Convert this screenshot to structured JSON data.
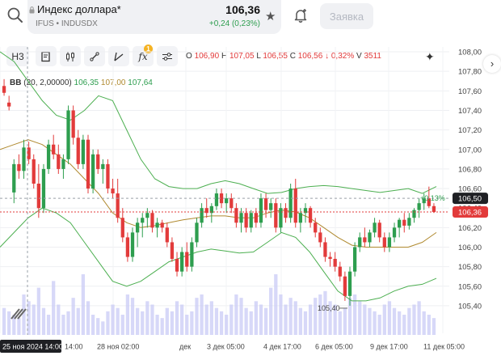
{
  "header": {
    "title": "Индекс доллара*",
    "subtitle": "IFUS • INDUSDX",
    "price": "106,36",
    "change": "+0,24 (0,23%)",
    "order_label": "Заявка"
  },
  "toolbar": {
    "interval_label": "H3",
    "badge": "1",
    "items": [
      "notes-icon",
      "candles-icon",
      "draw-icon",
      "lines-icon",
      "indicators-icon",
      "settings-icon"
    ]
  },
  "ohlc": {
    "o_label": "O",
    "o": "106,90",
    "h_label": "H",
    "h": "107,05",
    "l_label": "L",
    "l": "106,55",
    "c_label": "C",
    "c": "106,56",
    "arrow": "↓",
    "chg": "0,32%",
    "v_label": "V",
    "v": "3511"
  },
  "indicator": {
    "name": "BB",
    "params": "(20, 2,00000)",
    "upper": "106,35",
    "middle": "107,00",
    "lower": "107,64"
  },
  "colors": {
    "up": "#2e9e4f",
    "down": "#e23b3b",
    "band": "#4caf50",
    "middle": "#b08a30",
    "volume": "#c9cbf5"
  },
  "chart_data": {
    "type": "candlestick",
    "y_range": [
      105.3,
      108.05
    ],
    "y_ticks": [
      "108,00",
      "107,80",
      "107,60",
      "107,40",
      "107,20",
      "107,00",
      "106,80",
      "106,60",
      "106,40",
      "106,20",
      "106,00",
      "105,80",
      "105,60",
      "105,40"
    ],
    "x_labels": [
      "25 ноя 2024 14:00",
      "28 ноя 02:00",
      "дек",
      "3 дек 05:00",
      "4 дек 17:00",
      "6 дек 05:00",
      "9 дек 17:00",
      "11 дек 05:00"
    ],
    "partial_x_label": "14:00",
    "last_price_label": "106,36",
    "last_price": 106.36,
    "prev_close_label": "106,50",
    "prev_close": 106.5,
    "pct_label": "+0,13%",
    "min_label": "105,40",
    "min_value": 105.4,
    "candles": [
      {
        "o": 107.65,
        "h": 107.72,
        "l": 107.55,
        "c": 107.58
      },
      {
        "o": 107.48,
        "h": 107.55,
        "l": 107.4,
        "c": 107.44
      },
      {
        "o": 106.56,
        "h": 106.9,
        "l": 106.45,
        "c": 106.85
      },
      {
        "o": 106.85,
        "h": 106.95,
        "l": 106.7,
        "c": 106.78
      },
      {
        "o": 106.78,
        "h": 107.1,
        "l": 106.7,
        "c": 107.02
      },
      {
        "o": 107.02,
        "h": 107.08,
        "l": 106.85,
        "c": 106.9
      },
      {
        "o": 106.9,
        "h": 106.95,
        "l": 106.6,
        "c": 106.65
      },
      {
        "o": 106.65,
        "h": 106.85,
        "l": 106.3,
        "c": 106.4
      },
      {
        "o": 106.4,
        "h": 106.85,
        "l": 106.35,
        "c": 106.8
      },
      {
        "o": 106.8,
        "h": 107.1,
        "l": 106.75,
        "c": 107.05
      },
      {
        "o": 107.05,
        "h": 107.15,
        "l": 106.9,
        "c": 106.95
      },
      {
        "o": 106.95,
        "h": 107.05,
        "l": 106.75,
        "c": 106.8
      },
      {
        "o": 106.8,
        "h": 106.95,
        "l": 106.7,
        "c": 106.9
      },
      {
        "o": 106.9,
        "h": 107.45,
        "l": 106.85,
        "c": 107.4
      },
      {
        "o": 107.4,
        "h": 107.45,
        "l": 107.05,
        "c": 107.12
      },
      {
        "o": 107.12,
        "h": 107.2,
        "l": 106.8,
        "c": 106.85
      },
      {
        "o": 106.85,
        "h": 107.15,
        "l": 106.8,
        "c": 107.1
      },
      {
        "o": 107.1,
        "h": 107.15,
        "l": 106.55,
        "c": 106.6
      },
      {
        "o": 106.6,
        "h": 107.0,
        "l": 106.55,
        "c": 106.95
      },
      {
        "o": 106.95,
        "h": 107.0,
        "l": 106.75,
        "c": 106.8
      },
      {
        "o": 106.8,
        "h": 106.9,
        "l": 106.65,
        "c": 106.85
      },
      {
        "o": 106.85,
        "h": 106.9,
        "l": 106.55,
        "c": 106.6
      },
      {
        "o": 106.6,
        "h": 106.7,
        "l": 106.5,
        "c": 106.55
      },
      {
        "o": 106.55,
        "h": 106.7,
        "l": 106.25,
        "c": 106.3
      },
      {
        "o": 106.3,
        "h": 106.4,
        "l": 106.05,
        "c": 106.1
      },
      {
        "o": 106.1,
        "h": 106.15,
        "l": 105.85,
        "c": 105.9
      },
      {
        "o": 105.9,
        "h": 106.2,
        "l": 105.85,
        "c": 106.15
      },
      {
        "o": 106.15,
        "h": 106.3,
        "l": 106.0,
        "c": 106.25
      },
      {
        "o": 106.25,
        "h": 106.35,
        "l": 106.1,
        "c": 106.3
      },
      {
        "o": 106.3,
        "h": 106.4,
        "l": 106.2,
        "c": 106.35
      },
      {
        "o": 106.35,
        "h": 106.38,
        "l": 106.15,
        "c": 106.2
      },
      {
        "o": 106.2,
        "h": 106.3,
        "l": 106.1,
        "c": 106.25
      },
      {
        "o": 106.25,
        "h": 106.28,
        "l": 106.15,
        "c": 106.2
      },
      {
        "o": 106.2,
        "h": 106.25,
        "l": 106.0,
        "c": 106.05
      },
      {
        "o": 106.05,
        "h": 106.1,
        "l": 105.85,
        "c": 105.88
      },
      {
        "o": 105.88,
        "h": 105.95,
        "l": 105.7,
        "c": 105.75
      },
      {
        "o": 105.75,
        "h": 106.0,
        "l": 105.7,
        "c": 105.95
      },
      {
        "o": 105.95,
        "h": 106.05,
        "l": 105.75,
        "c": 105.8
      },
      {
        "o": 105.8,
        "h": 106.1,
        "l": 105.75,
        "c": 106.05
      },
      {
        "o": 106.05,
        "h": 106.3,
        "l": 106.0,
        "c": 106.25
      },
      {
        "o": 106.25,
        "h": 106.45,
        "l": 106.2,
        "c": 106.4
      },
      {
        "o": 106.4,
        "h": 106.5,
        "l": 106.3,
        "c": 106.35
      },
      {
        "o": 106.35,
        "h": 106.45,
        "l": 106.25,
        "c": 106.42
      },
      {
        "o": 106.42,
        "h": 106.6,
        "l": 106.38,
        "c": 106.55
      },
      {
        "o": 106.55,
        "h": 106.6,
        "l": 106.4,
        "c": 106.45
      },
      {
        "o": 106.45,
        "h": 106.55,
        "l": 106.35,
        "c": 106.5
      },
      {
        "o": 106.5,
        "h": 106.55,
        "l": 106.35,
        "c": 106.4
      },
      {
        "o": 106.4,
        "h": 106.45,
        "l": 106.2,
        "c": 106.25
      },
      {
        "o": 106.25,
        "h": 106.4,
        "l": 106.15,
        "c": 106.35
      },
      {
        "o": 106.35,
        "h": 106.4,
        "l": 106.15,
        "c": 106.2
      },
      {
        "o": 106.2,
        "h": 106.38,
        "l": 106.15,
        "c": 106.35
      },
      {
        "o": 106.35,
        "h": 106.4,
        "l": 106.2,
        "c": 106.25
      },
      {
        "o": 106.25,
        "h": 106.55,
        "l": 106.2,
        "c": 106.5
      },
      {
        "o": 106.5,
        "h": 106.55,
        "l": 106.3,
        "c": 106.38
      },
      {
        "o": 106.38,
        "h": 106.5,
        "l": 106.3,
        "c": 106.45
      },
      {
        "o": 106.45,
        "h": 106.5,
        "l": 106.15,
        "c": 106.2
      },
      {
        "o": 106.2,
        "h": 106.45,
        "l": 106.15,
        "c": 106.4
      },
      {
        "o": 106.4,
        "h": 106.45,
        "l": 106.25,
        "c": 106.3
      },
      {
        "o": 106.3,
        "h": 106.65,
        "l": 106.25,
        "c": 106.6
      },
      {
        "o": 106.6,
        "h": 106.7,
        "l": 106.2,
        "c": 106.25
      },
      {
        "o": 106.25,
        "h": 106.4,
        "l": 106.15,
        "c": 106.35
      },
      {
        "o": 106.35,
        "h": 106.45,
        "l": 106.25,
        "c": 106.4
      },
      {
        "o": 106.4,
        "h": 106.42,
        "l": 106.2,
        "c": 106.25
      },
      {
        "o": 106.25,
        "h": 106.3,
        "l": 106.1,
        "c": 106.15
      },
      {
        "o": 106.15,
        "h": 106.2,
        "l": 106.0,
        "c": 106.05
      },
      {
        "o": 106.05,
        "h": 106.1,
        "l": 105.85,
        "c": 105.9
      },
      {
        "o": 105.9,
        "h": 105.95,
        "l": 105.8,
        "c": 105.88
      },
      {
        "o": 105.88,
        "h": 105.95,
        "l": 105.75,
        "c": 105.8
      },
      {
        "o": 105.8,
        "h": 105.85,
        "l": 105.65,
        "c": 105.7
      },
      {
        "o": 105.7,
        "h": 105.75,
        "l": 105.45,
        "c": 105.5
      },
      {
        "o": 105.5,
        "h": 105.8,
        "l": 105.4,
        "c": 105.75
      },
      {
        "o": 105.75,
        "h": 106.05,
        "l": 105.7,
        "c": 106.0
      },
      {
        "o": 106.0,
        "h": 106.15,
        "l": 105.95,
        "c": 106.1
      },
      {
        "o": 106.1,
        "h": 106.2,
        "l": 106.0,
        "c": 106.05
      },
      {
        "o": 106.05,
        "h": 106.18,
        "l": 106.0,
        "c": 106.15
      },
      {
        "o": 106.15,
        "h": 106.3,
        "l": 106.1,
        "c": 106.25
      },
      {
        "o": 106.25,
        "h": 106.28,
        "l": 106.05,
        "c": 106.1
      },
      {
        "o": 106.1,
        "h": 106.15,
        "l": 105.95,
        "c": 106.0
      },
      {
        "o": 106.0,
        "h": 106.15,
        "l": 105.95,
        "c": 106.1
      },
      {
        "o": 106.1,
        "h": 106.25,
        "l": 106.05,
        "c": 106.2
      },
      {
        "o": 106.2,
        "h": 106.3,
        "l": 106.1,
        "c": 106.28
      },
      {
        "o": 106.28,
        "h": 106.35,
        "l": 106.15,
        "c": 106.22
      },
      {
        "o": 106.22,
        "h": 106.35,
        "l": 106.18,
        "c": 106.3
      },
      {
        "o": 106.3,
        "h": 106.4,
        "l": 106.25,
        "c": 106.38
      },
      {
        "o": 106.38,
        "h": 106.5,
        "l": 106.3,
        "c": 106.45
      },
      {
        "o": 106.45,
        "h": 106.55,
        "l": 106.38,
        "c": 106.5
      },
      {
        "o": 106.5,
        "h": 106.62,
        "l": 106.4,
        "c": 106.42
      },
      {
        "o": 106.42,
        "h": 106.45,
        "l": 106.35,
        "c": 106.36
      }
    ],
    "bands": {
      "upper": [
        108.0,
        107.9,
        107.7,
        107.5,
        107.35,
        107.3,
        107.4,
        107.55,
        107.5,
        107.2,
        106.9,
        106.7,
        106.62,
        106.6,
        106.6,
        106.65,
        106.68,
        106.65,
        106.6,
        106.55,
        106.56,
        106.6,
        106.62,
        106.63,
        106.62,
        106.6,
        106.58,
        106.56,
        106.58,
        106.6,
        106.55,
        106.62
      ],
      "middle": [
        107.0,
        107.05,
        107.1,
        107.05,
        106.95,
        106.85,
        106.7,
        106.55,
        106.35,
        106.25,
        106.2,
        106.22,
        106.25,
        106.28,
        106.3,
        106.32,
        106.32,
        106.3,
        106.3,
        106.35,
        106.38,
        106.36,
        106.3,
        106.2,
        106.1,
        106.02,
        106.0,
        106.0,
        106.0,
        106.0,
        106.05,
        106.15
      ],
      "lower": [
        106.0,
        106.15,
        106.3,
        106.4,
        106.35,
        106.25,
        106.05,
        105.85,
        105.65,
        105.6,
        105.65,
        105.75,
        105.85,
        105.9,
        105.95,
        105.98,
        105.96,
        105.94,
        105.95,
        106.05,
        106.15,
        106.1,
        105.95,
        105.75,
        105.55,
        105.45,
        105.45,
        105.48,
        105.55,
        105.6,
        105.62,
        105.68
      ]
    },
    "volume": [
      40,
      35,
      30,
      25,
      60,
      50,
      45,
      70,
      40,
      30,
      80,
      45,
      30,
      35,
      55,
      40,
      90,
      50,
      30,
      25,
      20,
      35,
      45,
      40,
      30,
      60,
      55,
      40,
      35,
      50,
      45,
      30,
      25,
      40,
      35,
      50,
      45,
      30,
      35,
      55,
      60,
      45,
      50,
      40,
      35,
      30,
      45,
      60,
      55,
      40,
      35,
      50,
      45,
      40,
      70,
      90,
      60,
      45,
      55,
      50,
      40,
      35,
      45,
      55,
      60,
      65,
      50,
      45,
      35,
      40,
      55,
      60,
      50,
      45,
      40,
      35,
      30,
      45,
      50,
      40,
      35,
      30,
      40,
      45,
      50,
      35,
      30,
      25
    ]
  }
}
